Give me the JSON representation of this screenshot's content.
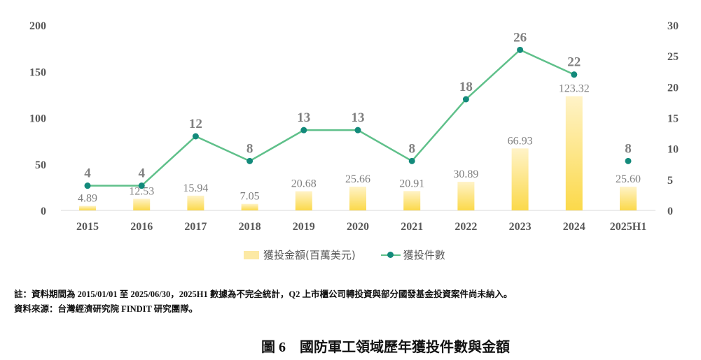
{
  "chart_data": {
    "type": "bar+line",
    "categories": [
      "2015",
      "2016",
      "2017",
      "2018",
      "2019",
      "2020",
      "2021",
      "2022",
      "2023",
      "2024",
      "2025H1"
    ],
    "series": [
      {
        "name": "獲投金額(百萬美元)",
        "type": "bar",
        "axis": "left",
        "values": [
          4.89,
          12.53,
          15.94,
          7.05,
          20.68,
          25.66,
          20.91,
          30.89,
          66.93,
          123.32,
          25.6
        ],
        "labels": [
          "4.89",
          "12.53",
          "15.94",
          "7.05",
          "20.68",
          "25.66",
          "20.91",
          "30.89",
          "66.93",
          "123.32",
          "25.60"
        ],
        "color": "#fce9a4"
      },
      {
        "name": "獲投件數",
        "type": "line",
        "axis": "right",
        "values": [
          4,
          4,
          12,
          8,
          13,
          13,
          8,
          18,
          26,
          22,
          8
        ],
        "line_color": "#5fc08a",
        "marker_color": "#138a7b",
        "connected_through": "2024"
      }
    ],
    "left_axis": {
      "range": [
        0,
        200
      ],
      "ticks": [
        "0",
        "50",
        "100",
        "150",
        "200"
      ]
    },
    "right_axis": {
      "range": [
        0,
        30
      ],
      "ticks": [
        "0",
        "5",
        "10",
        "15",
        "20",
        "25",
        "30"
      ]
    },
    "grid": false,
    "legend": "bottom"
  },
  "notes": {
    "note": "註：資料期間為 2015/01/01 至 2025/06/30，2025H1 數據為不完全統計，Q2 上市櫃公司轉投資與部分國發基金投資案件尚未納入。",
    "source": "資料來源：台灣經濟研究院 FINDIT 研究團隊。"
  },
  "caption": "圖 6　國防軍工領域歷年獲投件數與金額"
}
